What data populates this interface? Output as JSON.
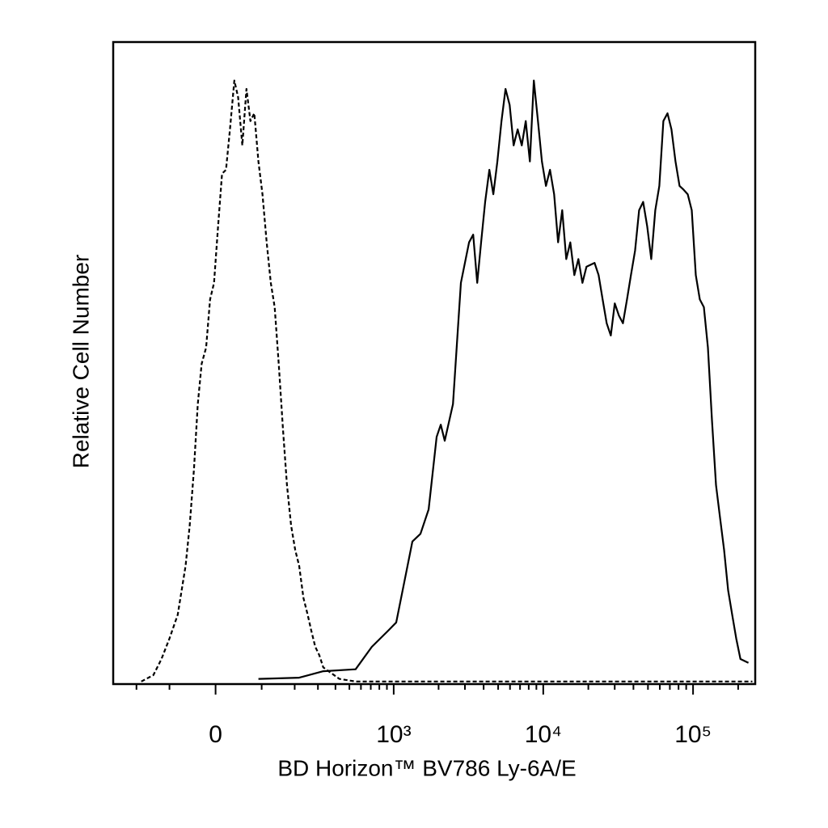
{
  "chart_data": {
    "type": "line",
    "x_label": "BD Horizon™ BV786 Ly-6A/E",
    "y_label": "Relative Cell Number",
    "xscale": "biexponential",
    "xlim": [
      -300,
      260000
    ],
    "ylim": [
      0,
      100
    ],
    "xticks": [
      0,
      {
        "value": 1000,
        "label": "10³"
      },
      {
        "value": 10000,
        "label": "10⁴"
      },
      {
        "value": 100000,
        "label": "10⁵"
      }
    ],
    "xminorticks": [
      -200,
      -100,
      100,
      200,
      300,
      400,
      500,
      600,
      700,
      800,
      900,
      2000,
      3000,
      4000,
      5000,
      6000,
      7000,
      8000,
      9000,
      20000,
      30000,
      40000,
      50000,
      60000,
      70000,
      80000,
      90000,
      200000
    ],
    "series": [
      {
        "color": "#000000",
        "line_style": "dashed",
        "x": [
          -183,
          -144,
          -121,
          -100,
          -80,
          -62,
          -53,
          -44,
          -36,
          -28,
          -19,
          -11,
          -3,
          5,
          13,
          21,
          29,
          38,
          46,
          55,
          64,
          73,
          82,
          92,
          102,
          113,
          124,
          135,
          147,
          160,
          173,
          187,
          202,
          217,
          234,
          252,
          268,
          287,
          307,
          328,
          426,
          552,
          249000
        ],
        "values": [
          0.4,
          1.4,
          3.9,
          7.1,
          10.8,
          18.4,
          24.7,
          33.5,
          43.6,
          49.9,
          52.4,
          59.9,
          62.5,
          71.3,
          79.5,
          80.1,
          86.4,
          94,
          91.4,
          83.9,
          92.7,
          87.7,
          88.9,
          81.4,
          76.3,
          68.8,
          62.5,
          58.7,
          49.9,
          39.8,
          31.0,
          24.7,
          20.9,
          18.4,
          13.4,
          10.8,
          8.3,
          5.8,
          4.5,
          2.6,
          0.8,
          0.4,
          0.4
        ]
      },
      {
        "color": "#000000",
        "line_style": "solid",
        "x": [
          92,
          217,
          328,
          552,
          712,
          916,
          1040,
          1178,
          1335,
          1512,
          1715,
          1941,
          2067,
          2197,
          2496,
          2821,
          3198,
          3406,
          3627,
          3848,
          4095,
          4368,
          4641,
          4940,
          5265,
          5603,
          5967,
          6344,
          6747,
          7189,
          7644,
          8138,
          8658,
          9217,
          9802,
          10426,
          11102,
          11817,
          12571,
          13390,
          14248,
          15158,
          16133,
          17160,
          18265,
          19435,
          22009,
          23413,
          24934,
          26520,
          28236,
          30030,
          31980,
          34021,
          36205,
          38519,
          41015,
          43641,
          46436,
          49400,
          52598,
          55965,
          59540,
          63375,
          67470,
          71760,
          76375,
          81250,
          86450,
          92105,
          98020,
          104260,
          110955,
          118105,
          125645,
          133705,
          142285,
          151515,
          161200,
          171535,
          182520,
          194220,
          207025,
          234325
        ],
        "values": [
          0.8,
          1.0,
          2.0,
          2.3,
          5.8,
          8.3,
          9.6,
          15.9,
          22.2,
          23.4,
          27.2,
          38.5,
          40.4,
          37.9,
          43.6,
          62.5,
          68.8,
          70.0,
          62.5,
          68.8,
          75.1,
          80.1,
          76.3,
          81.4,
          87.7,
          92.7,
          90.2,
          83.9,
          86.4,
          83.9,
          87.7,
          81.4,
          94.0,
          87.7,
          81.4,
          77.6,
          80.1,
          76.3,
          68.8,
          73.8,
          66.2,
          68.8,
          63.7,
          66.2,
          62.5,
          65.0,
          65.6,
          63.7,
          59.9,
          56.2,
          54.3,
          59.3,
          57.4,
          56.2,
          59.9,
          63.7,
          67.5,
          73.8,
          75.1,
          71.3,
          66.2,
          73.8,
          77.6,
          87.7,
          88.9,
          86.4,
          81.4,
          77.6,
          77.0,
          76.3,
          73.8,
          63.7,
          59.9,
          58.7,
          52.4,
          41.1,
          31.0,
          25.9,
          20.9,
          14.6,
          10.8,
          7.1,
          3.9,
          3.3
        ]
      }
    ]
  }
}
